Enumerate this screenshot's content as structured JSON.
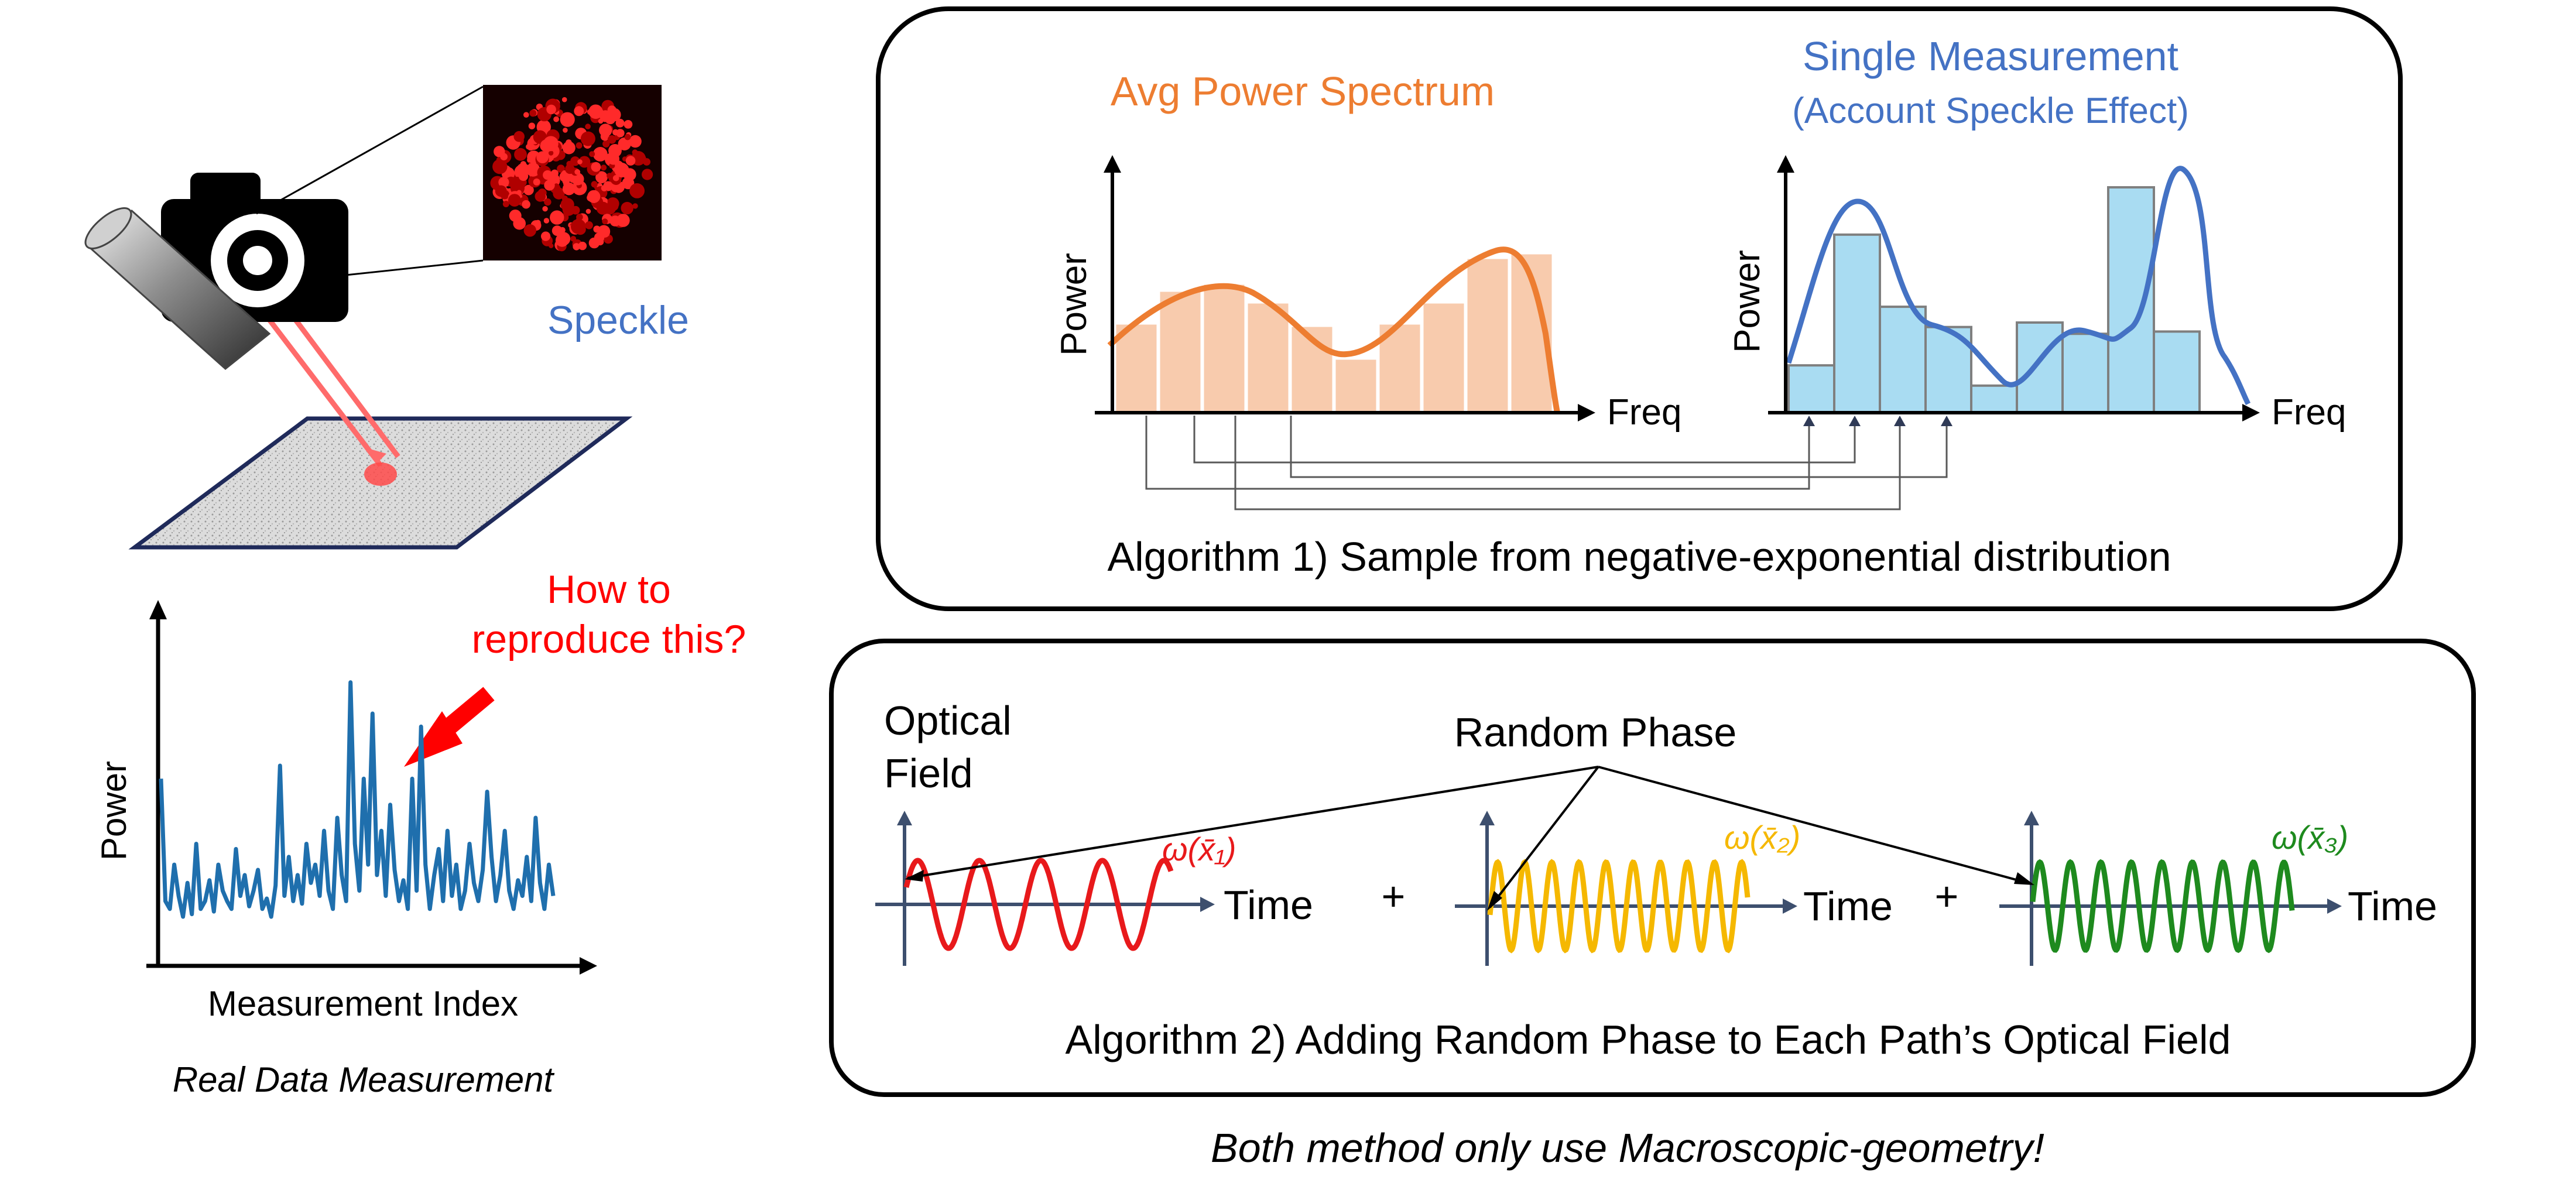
{
  "left": {
    "speckle_label": "Speckle",
    "question": [
      "How to",
      "reproduce this?"
    ],
    "plot_ylabel": "Power",
    "plot_xlabel": "Measurement Index",
    "caption": "Real Data Measurement",
    "plot_series": [
      0.55,
      0.08,
      0.05,
      0.22,
      0.1,
      0.02,
      0.15,
      0.03,
      0.3,
      0.05,
      0.08,
      0.16,
      0.04,
      0.22,
      0.12,
      0.08,
      0.05,
      0.28,
      0.1,
      0.18,
      0.06,
      0.12,
      0.2,
      0.05,
      0.09,
      0.02,
      0.14,
      0.6,
      0.1,
      0.25,
      0.08,
      0.18,
      0.07,
      0.3,
      0.15,
      0.22,
      0.1,
      0.35,
      0.12,
      0.05,
      0.4,
      0.18,
      0.08,
      0.92,
      0.3,
      0.12,
      0.55,
      0.22,
      0.8,
      0.18,
      0.35,
      0.1,
      0.45,
      0.2,
      0.08,
      0.16,
      0.05,
      0.55,
      0.12,
      0.75,
      0.22,
      0.05,
      0.18,
      0.28,
      0.08,
      0.35,
      0.1,
      0.22,
      0.05,
      0.12,
      0.3,
      0.15,
      0.08,
      0.2,
      0.5,
      0.25,
      0.08,
      0.18,
      0.35,
      0.12,
      0.05,
      0.16,
      0.1,
      0.25,
      0.08,
      0.4,
      0.15,
      0.05,
      0.22,
      0.1
    ]
  },
  "algo1": {
    "avg_title": "Avg Power Spectrum",
    "single_title": "Single Measurement",
    "single_subtitle": "(Account Speckle Effect)",
    "ylabel": "Power",
    "xlabel": "Freq",
    "caption": "Algorithm 1) Sample from negative-exponential distribution",
    "avg_bars": [
      0.38,
      0.52,
      0.55,
      0.47,
      0.37,
      0.23,
      0.38,
      0.47,
      0.66,
      0.68
    ],
    "single_bars": [
      0.21,
      0.79,
      0.47,
      0.38,
      0.12,
      0.4,
      0.35,
      1.0,
      0.36
    ]
  },
  "algo2": {
    "ylabel": [
      "Optical",
      "Field"
    ],
    "random_phase": "Random Phase",
    "xlabel": "Time",
    "plus": "+",
    "omega1": "ω(x̄₁)",
    "omega2": "ω(x̄₂)",
    "omega3": "ω(x̄₃)",
    "caption": "Algorithm 2) Adding Random Phase to Each Path’s Optical Field",
    "colors": {
      "w1": "#e8191b",
      "w2": "#f5b800",
      "w3": "#1e8a1e"
    }
  },
  "footer": "Both method only use Macroscopic-geometry!"
}
